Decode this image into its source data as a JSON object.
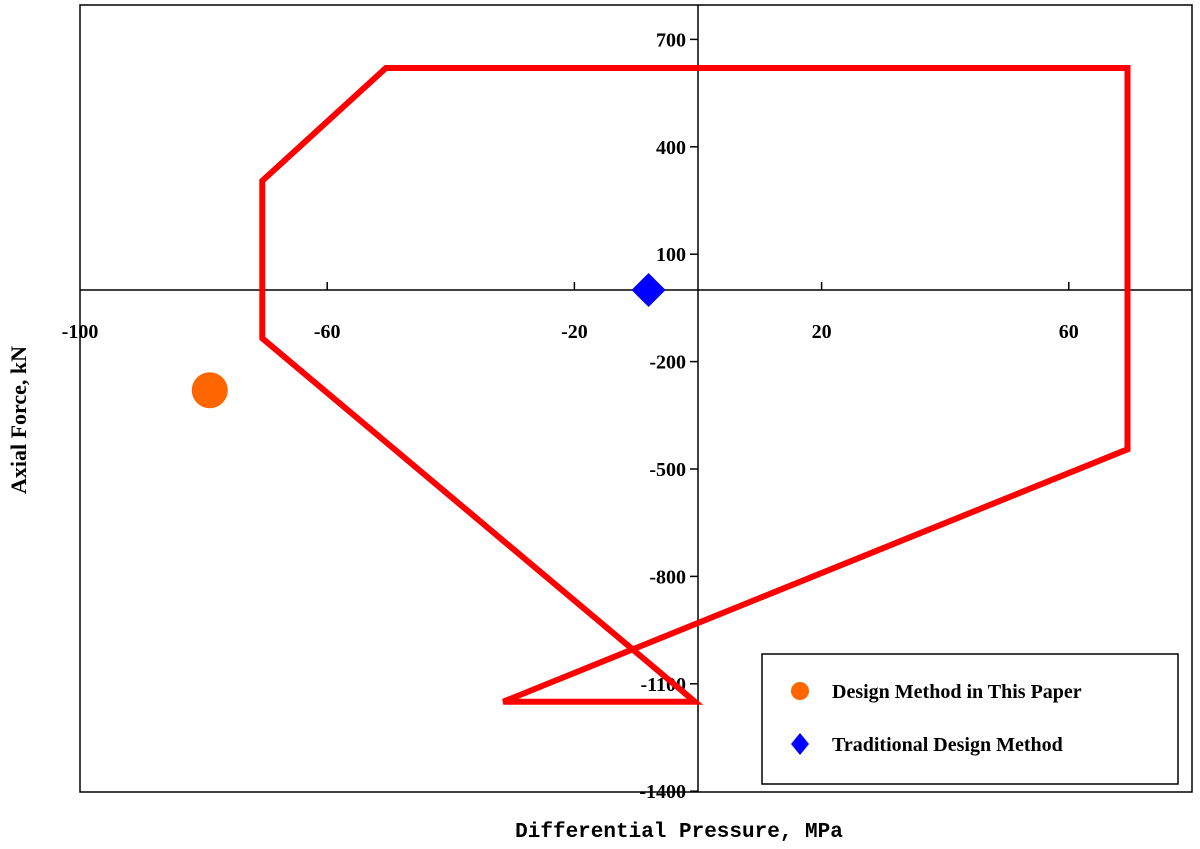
{
  "chart_data": {
    "type": "scatter",
    "title": "",
    "xlabel": "Differential Pressure, MPa",
    "ylabel": "Axial Force, kN",
    "xlim": [
      -100,
      80
    ],
    "ylim": [
      -1400,
      800
    ],
    "xticks": [
      -100,
      -60,
      -20,
      20,
      60
    ],
    "yticks": [
      700,
      400,
      100,
      -200,
      -500,
      -800,
      -1100,
      -1400
    ],
    "grid": false,
    "legend_position": "bottom-right",
    "envelope": {
      "color": "#ff0000",
      "x": [
        -50.5,
        69.5,
        69.5,
        -31.5,
        -0.5,
        -70.5,
        -70.5,
        -50.5
      ],
      "y": [
        620,
        620,
        -445,
        -1150,
        -1150,
        -135,
        305,
        620
      ]
    },
    "series": [
      {
        "name": "Design Method in This Paper",
        "marker": "circle",
        "color": "#ff6600",
        "x": [
          -79
        ],
        "y": [
          -280
        ]
      },
      {
        "name": "Traditional Design Method",
        "marker": "diamond",
        "color": "#0000ff",
        "x": [
          -8
        ],
        "y": [
          0
        ]
      }
    ]
  }
}
